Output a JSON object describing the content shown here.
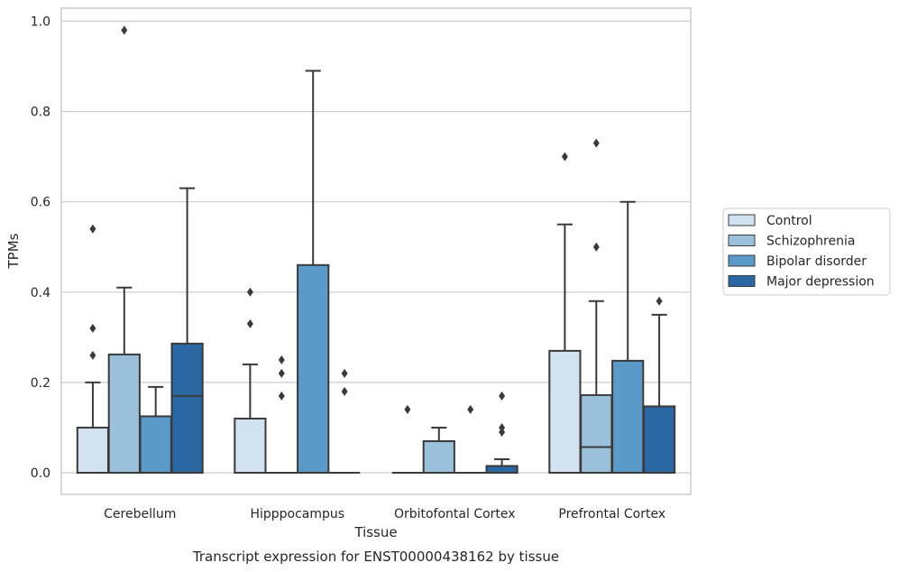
{
  "chart_data": {
    "type": "box",
    "xlabel": "Tissue",
    "ylabel": "TPMs",
    "caption": "Transcript expression for ENST00000438162 by tissue",
    "ylim": [
      -0.045,
      1.03
    ],
    "yticks": [
      0.0,
      0.2,
      0.4,
      0.6,
      0.8,
      1.0
    ],
    "ytick_labels": [
      "0.0",
      "0.2",
      "0.4",
      "0.6",
      "0.8",
      "1.0"
    ],
    "grid": "horizontal",
    "legend_position": "right",
    "categories": [
      "Cerebellum",
      "Hipppocampus",
      "Orbitofontal Cortex",
      "Prefrontal Cortex"
    ],
    "series": [
      {
        "name": "Control",
        "color": "#d2e2f0",
        "boxes": [
          {
            "q1": 0.0,
            "median": 0.0,
            "q3": 0.1,
            "whisker_low": 0.0,
            "whisker_high": 0.2,
            "outliers": [
              0.26,
              0.32,
              0.54
            ]
          },
          {
            "q1": 0.0,
            "median": 0.0,
            "q3": 0.12,
            "whisker_low": 0.0,
            "whisker_high": 0.24,
            "outliers": [
              0.33,
              0.4
            ]
          },
          {
            "q1": 0.0,
            "median": 0.0,
            "q3": 0.0,
            "whisker_low": 0.0,
            "whisker_high": 0.0,
            "outliers": [
              0.14
            ]
          },
          {
            "q1": 0.0,
            "median": 0.0,
            "q3": 0.27,
            "whisker_low": 0.0,
            "whisker_high": 0.55,
            "outliers": [
              0.7
            ]
          }
        ]
      },
      {
        "name": "Schizophrenia",
        "color": "#9ac0da",
        "boxes": [
          {
            "q1": 0.0,
            "median": 0.0,
            "q3": 0.262,
            "whisker_low": 0.0,
            "whisker_high": 0.41,
            "outliers": [
              0.98
            ]
          },
          {
            "q1": 0.0,
            "median": 0.0,
            "q3": 0.0,
            "whisker_low": 0.0,
            "whisker_high": 0.0,
            "outliers": [
              0.17,
              0.22,
              0.25
            ]
          },
          {
            "q1": 0.0,
            "median": 0.0,
            "q3": 0.07,
            "whisker_low": 0.0,
            "whisker_high": 0.1,
            "outliers": []
          },
          {
            "q1": 0.0,
            "median": 0.057,
            "q3": 0.172,
            "whisker_low": 0.0,
            "whisker_high": 0.38,
            "outliers": [
              0.5,
              0.73
            ]
          }
        ]
      },
      {
        "name": "Bipolar disorder",
        "color": "#5b9ac8",
        "boxes": [
          {
            "q1": 0.0,
            "median": 0.0,
            "q3": 0.125,
            "whisker_low": 0.0,
            "whisker_high": 0.19,
            "outliers": []
          },
          {
            "q1": 0.0,
            "median": 0.0,
            "q3": 0.46,
            "whisker_low": 0.0,
            "whisker_high": 0.89,
            "outliers": []
          },
          {
            "q1": 0.0,
            "median": 0.0,
            "q3": 0.0,
            "whisker_low": 0.0,
            "whisker_high": 0.0,
            "outliers": [
              0.14
            ]
          },
          {
            "q1": 0.0,
            "median": 0.0,
            "q3": 0.248,
            "whisker_low": 0.0,
            "whisker_high": 0.6,
            "outliers": []
          }
        ]
      },
      {
        "name": "Major depression",
        "color": "#2a67a3",
        "boxes": [
          {
            "q1": 0.0,
            "median": 0.17,
            "q3": 0.286,
            "whisker_low": 0.0,
            "whisker_high": 0.63,
            "outliers": []
          },
          {
            "q1": 0.0,
            "median": 0.0,
            "q3": 0.0,
            "whisker_low": 0.0,
            "whisker_high": 0.0,
            "outliers": [
              0.18,
              0.22
            ]
          },
          {
            "q1": 0.0,
            "median": 0.0,
            "q3": 0.015,
            "whisker_low": 0.0,
            "whisker_high": 0.03,
            "outliers": [
              0.09,
              0.1,
              0.17
            ]
          },
          {
            "q1": 0.0,
            "median": 0.0,
            "q3": 0.147,
            "whisker_low": 0.0,
            "whisker_high": 0.35,
            "outliers": [
              0.38
            ]
          }
        ]
      }
    ]
  }
}
